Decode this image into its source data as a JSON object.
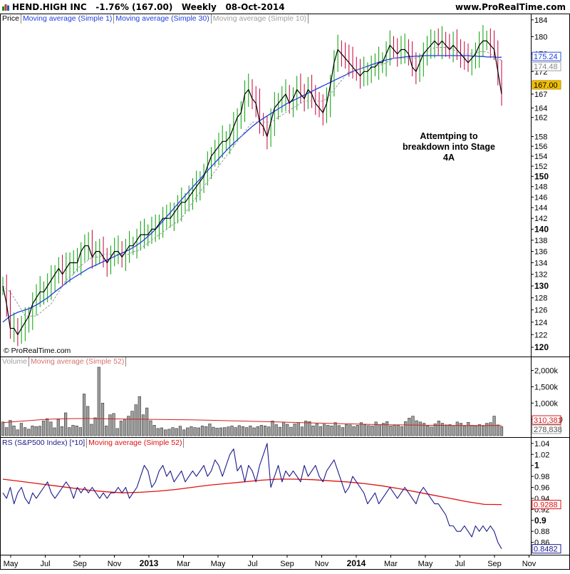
{
  "header": {
    "ticker": "HEND.HIGH INC",
    "change": "-1.76% (167.00)",
    "period": "Weekly",
    "date": "08-Oct-2014",
    "site": "www.ProRealTime.com"
  },
  "copyright": "© ProRealTime.com",
  "annotation": [
    "Attemtping to",
    "breakdown into Stage 4A"
  ],
  "colors": {
    "up_bar": "#00a000",
    "down_bar": "#c8003c",
    "price_line": "#000000",
    "ma30": "#1f3fe0",
    "ma10": "#999999",
    "volume_bar": "#a0a0a0",
    "volume_ma": "#d02020",
    "rs_line": "#1a1a8c",
    "rs_ma": "#e01010",
    "current_price_tag": "#f2c000"
  },
  "chart_data": [
    {
      "type": "line",
      "panel": "price",
      "legend": [
        "Price",
        "Moving average (Simple 1)",
        "Moving average (Simple 30)",
        "Moving average (Simple 10)"
      ],
      "x_tick_labels": [
        "May",
        "Jul",
        "Sep",
        "Nov",
        "2013",
        "Mar",
        "May",
        "Jul",
        "Sep",
        "Nov",
        "2014",
        "Mar",
        "May",
        "Jul",
        "Sep",
        "Nov"
      ],
      "y_scale": "log",
      "ylim": [
        119,
        185
      ],
      "y_ticks": [
        120,
        122,
        124,
        126,
        128,
        130,
        132,
        134,
        136,
        138,
        140,
        142,
        144,
        146,
        148,
        150,
        152,
        154,
        156,
        158,
        162,
        164,
        167,
        172,
        176,
        180,
        184
      ],
      "y_tick_labels_bold": [
        120,
        130,
        140,
        150,
        167
      ],
      "value_tags": {
        "ma30": "175.24",
        "ma10": "174.48",
        "last": "167.00"
      },
      "series": [
        {
          "name": "Moving average (Simple 1)",
          "values": [
            130,
            127,
            123,
            123,
            122,
            123,
            124,
            125,
            127,
            128,
            129,
            129,
            130,
            131,
            132,
            133,
            132,
            133,
            134,
            134,
            134,
            136,
            137,
            137,
            135,
            136,
            136,
            135,
            134,
            135,
            136,
            136,
            135,
            136,
            137,
            137,
            138,
            139,
            139,
            139,
            140,
            140,
            141,
            142,
            142,
            142,
            143,
            144,
            145,
            145,
            146,
            147,
            148,
            149,
            150,
            152,
            154,
            155,
            156,
            157,
            157,
            158,
            160,
            162,
            163,
            167,
            168,
            166,
            165,
            161,
            160,
            158,
            161,
            164,
            165,
            166,
            167,
            165,
            166,
            168,
            167,
            166,
            168,
            167,
            165,
            164,
            163,
            165,
            169,
            174,
            177,
            176,
            175,
            174,
            173,
            172,
            171,
            172,
            172,
            173,
            173,
            174,
            174,
            176,
            178,
            177,
            176,
            177,
            177,
            176,
            173,
            172,
            174,
            176,
            177,
            178,
            179,
            178,
            179,
            178,
            177,
            178,
            177,
            176,
            175,
            174,
            175,
            176,
            178,
            179,
            179,
            178,
            177,
            172,
            167
          ]
        },
        {
          "name": "Moving average (Simple 10)",
          "values": [
            130,
            129.5,
            129,
            128,
            127,
            126,
            125,
            125,
            125,
            125,
            125.5,
            126,
            126.5,
            127,
            128,
            129,
            130,
            131,
            131.5,
            132,
            133,
            133.5,
            134,
            134.5,
            135,
            135,
            135,
            135.5,
            135.5,
            135.5,
            135.5,
            135.5,
            135.5,
            135.5,
            135.5,
            136,
            136,
            136.5,
            137,
            137.5,
            138,
            138.5,
            139,
            139.5,
            140,
            140.5,
            141,
            141.5,
            142,
            143,
            144,
            145,
            146,
            147,
            148,
            149,
            150,
            151,
            152,
            153,
            154,
            155,
            156,
            157,
            158,
            159,
            160,
            161,
            161,
            161,
            161,
            161,
            161,
            161.5,
            162,
            162.5,
            163,
            163.5,
            164,
            164.5,
            165,
            165.5,
            165.5,
            165.5,
            165.5,
            165.5,
            165.5,
            166,
            167,
            168,
            169,
            170,
            171,
            172,
            172,
            172.5,
            172.5,
            173,
            173,
            173,
            173,
            173.5,
            173.5,
            174,
            174.5,
            175,
            175,
            175,
            175,
            175,
            175,
            175,
            175.5,
            176,
            176.5,
            177,
            177.5,
            177.5,
            177.5,
            177.5,
            177.5,
            177,
            176.5,
            176,
            176,
            176,
            176,
            176,
            176.5,
            176.5,
            176.5,
            176,
            175.5,
            175,
            174.5
          ]
        },
        {
          "name": "Moving average (Simple 30)",
          "values": [
            124,
            124.5,
            125,
            125.3,
            125.6,
            125.8,
            126,
            126.2,
            126.5,
            126.8,
            127.2,
            127.6,
            128,
            128.5,
            129,
            129.5,
            130,
            130.5,
            131,
            131.4,
            131.8,
            132.2,
            132.6,
            133,
            133.3,
            133.6,
            133.9,
            134.2,
            134.5,
            134.8,
            135.1,
            135.4,
            135.7,
            136,
            136.3,
            136.7,
            137.1,
            137.6,
            138.1,
            138.7,
            139.3,
            140,
            140.7,
            141.5,
            142.3,
            143.1,
            143.9,
            144.7,
            145.5,
            146.3,
            147.1,
            147.9,
            148.7,
            149.5,
            150.3,
            151.1,
            151.9,
            152.7,
            153.5,
            154.3,
            155.1,
            155.9,
            156.6,
            157.3,
            158,
            158.7,
            159.4,
            160.1,
            160.7,
            161.3,
            161.8,
            162.3,
            162.8,
            163.3,
            163.8,
            164.3,
            164.8,
            165.2,
            165.6,
            166,
            166.4,
            166.8,
            167.2,
            167.6,
            168,
            168.4,
            168.8,
            169.2,
            169.6,
            170,
            170.4,
            170.8,
            171.2,
            171.6,
            172,
            172.3,
            172.6,
            172.9,
            173.2,
            173.5,
            173.8,
            174.1,
            174.4,
            174.6,
            174.8,
            175,
            175.1,
            175.2,
            175.3,
            175.4,
            175.4,
            175.5,
            175.5,
            175.6,
            175.6,
            175.6,
            175.6,
            175.6,
            175.6,
            175.6,
            175.6,
            175.6,
            175.6,
            175.6,
            175.6,
            175.6,
            175.5,
            175.5,
            175.4,
            175.4,
            175.3,
            175.3,
            175.3,
            175.2,
            175.24
          ]
        }
      ]
    },
    {
      "type": "bar",
      "panel": "volume",
      "legend": [
        "Volume",
        "Moving average (Simple 52)"
      ],
      "ylim": [
        0,
        2100000
      ],
      "y_tick_labels": [
        "2,000k",
        "1,500k",
        "1,000k",
        "500,000"
      ],
      "y_tick_values": [
        2000000,
        1500000,
        1000000,
        500000
      ],
      "value_tags": {
        "ma52": "310,381",
        "last": "278,838"
      },
      "series": [
        {
          "name": "Volume",
          "values": [
            420000,
            250000,
            470000,
            300000,
            180000,
            380000,
            250000,
            200000,
            300000,
            280000,
            290000,
            450000,
            520000,
            420000,
            240000,
            500000,
            280000,
            700000,
            250000,
            320000,
            300000,
            250000,
            1280000,
            900000,
            350000,
            550000,
            2100000,
            1000000,
            300000,
            640000,
            680000,
            220000,
            450000,
            500000,
            600000,
            750000,
            950000,
            1200000,
            640000,
            850000,
            460000,
            320000,
            220000,
            240000,
            180000,
            200000,
            250000,
            220000,
            290000,
            180000,
            240000,
            280000,
            250000,
            240000,
            300000,
            280000,
            360000,
            260000,
            230000,
            240000,
            250000,
            270000,
            300000,
            250000,
            310000,
            280000,
            250000,
            300000,
            240000,
            280000,
            320000,
            300000,
            270000,
            450000,
            340000,
            260000,
            420000,
            350000,
            260000,
            360000,
            400000,
            270000,
            450000,
            430000,
            300000,
            360000,
            280000,
            350000,
            320000,
            300000,
            400000,
            310000,
            250000,
            340000,
            330000,
            280000,
            320000,
            400000,
            340000,
            310000,
            300000,
            420000,
            340000,
            380000,
            430000,
            300000,
            320000,
            320000,
            280000,
            430000,
            540000,
            600000,
            460000,
            420000,
            380000,
            300000,
            270000,
            360000,
            450000,
            380000,
            330000,
            340000,
            310000,
            420000,
            380000,
            300000,
            410000,
            320000,
            300000,
            340000,
            300000,
            380000,
            400000,
            600000,
            330000,
            278838
          ]
        },
        {
          "name": "Moving average (Simple 52)",
          "values": [
            400000,
            430000,
            460000,
            490000,
            510000,
            520000,
            525000,
            525000,
            520000,
            515000,
            510000,
            505000,
            500000,
            495000,
            490000,
            485000,
            480000,
            470000,
            460000,
            450000,
            440000,
            430000,
            420000,
            410000,
            400000,
            390000,
            380000,
            370000,
            360000,
            350000,
            340000,
            335000,
            330000,
            325000,
            320000,
            318000,
            315000,
            313000,
            312000,
            311000,
            310381
          ]
        }
      ]
    },
    {
      "type": "line",
      "panel": "relative strength",
      "legend": [
        "RS (S&P500 Index) [*10]",
        "Moving average (Simple 52)"
      ],
      "ylim": [
        0.84,
        1.045
      ],
      "y_ticks": [
        0.86,
        0.88,
        0.9,
        0.92,
        0.94,
        0.96,
        0.98,
        1.0,
        1.02,
        1.04
      ],
      "y_tick_labels": [
        "0.86",
        "0.88",
        "0.9",
        "0.92",
        "0.94",
        "0.96",
        "0.98",
        "1",
        "1.02",
        "1.04"
      ],
      "value_tags": {
        "ma52": "0.9288",
        "last": "0.8482"
      },
      "series": [
        {
          "name": "RS (S&P500 Index) [*10]",
          "values": [
            0.95,
            0.94,
            0.96,
            0.93,
            0.95,
            0.96,
            0.94,
            0.93,
            0.95,
            0.94,
            0.95,
            0.96,
            0.97,
            0.95,
            0.94,
            0.95,
            0.96,
            0.97,
            0.96,
            0.94,
            0.96,
            0.95,
            0.96,
            0.95,
            0.96,
            0.95,
            0.94,
            0.95,
            0.94,
            0.95,
            0.95,
            0.96,
            0.95,
            0.96,
            0.94,
            0.95,
            0.96,
            0.98,
            1.0,
            0.99,
            0.96,
            0.97,
            0.99,
            1.0,
            0.98,
            0.99,
            0.97,
            0.98,
            0.99,
            0.97,
            0.98,
            0.99,
            0.98,
            0.99,
            1.0,
            0.98,
            0.99,
            1.01,
            1.0,
            0.98,
            1.0,
            1.02,
            1.03,
            0.99,
            1.0,
            0.97,
            1.0,
            0.99,
            0.97,
            1.0,
            1.02,
            1.04,
            0.96,
            0.98,
            1.0,
            0.97,
            0.99,
            0.98,
            0.99,
            0.98,
            0.97,
            1.0,
            0.98,
            0.99,
            1.0,
            0.98,
            0.97,
            0.99,
            1.0,
            1.01,
            0.99,
            0.97,
            0.95,
            0.96,
            0.98,
            0.97,
            0.96,
            0.95,
            0.93,
            0.94,
            0.95,
            0.93,
            0.94,
            0.95,
            0.96,
            0.95,
            0.94,
            0.95,
            0.96,
            0.95,
            0.94,
            0.93,
            0.95,
            0.96,
            0.95,
            0.94,
            0.93,
            0.93,
            0.92,
            0.91,
            0.89,
            0.89,
            0.88,
            0.88,
            0.89,
            0.88,
            0.87,
            0.89,
            0.88,
            0.89,
            0.88,
            0.89,
            0.88,
            0.86,
            0.8482
          ]
        },
        {
          "name": "Moving average (Simple 52)",
          "values": [
            0.975,
            0.971,
            0.967,
            0.963,
            0.959,
            0.955,
            0.952,
            0.95,
            0.951,
            0.953,
            0.956,
            0.96,
            0.964,
            0.967,
            0.97,
            0.973,
            0.975,
            0.975,
            0.974,
            0.972,
            0.97,
            0.967,
            0.963,
            0.958,
            0.952,
            0.946,
            0.94,
            0.934,
            0.929,
            0.9288
          ]
        }
      ]
    }
  ]
}
